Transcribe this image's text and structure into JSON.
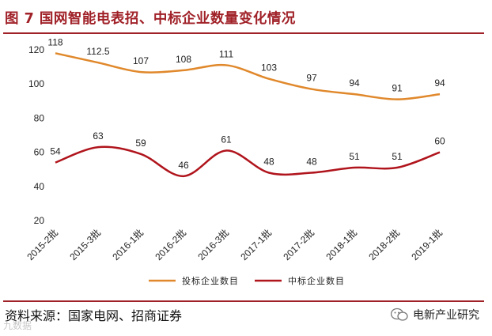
{
  "header": {
    "title": "图 7  国网智能电表招、中标企业数量变化情况"
  },
  "footer": {
    "source": "资料来源：国家电网、招商证券",
    "watermark": "九数据",
    "brand": "电新产业研究"
  },
  "colors": {
    "accent": "#a02128",
    "series_bid": "#e0882b",
    "series_win": "#b0141c"
  },
  "chart_data": {
    "type": "line",
    "categories": [
      "2015-2批",
      "2015-3批",
      "2016-1批",
      "2016-2批",
      "2016-3批",
      "2017-1批",
      "2017-2批",
      "2018-1批",
      "2018-2批",
      "2019-1批"
    ],
    "series": [
      {
        "name": "投标企业数目",
        "values": [
          118,
          112.5,
          107,
          108,
          111,
          103,
          97,
          94,
          91,
          94
        ],
        "labels": [
          "118",
          "112.5",
          "107",
          "108",
          "111",
          "103",
          "97",
          "94",
          "91",
          "94"
        ]
      },
      {
        "name": "中标企业数目",
        "values": [
          54,
          63,
          59,
          46,
          61,
          48,
          48,
          51,
          51,
          60
        ],
        "labels": [
          "54",
          "63",
          "59",
          "46",
          "61",
          "48",
          "48",
          "51",
          "51",
          "60"
        ]
      }
    ],
    "ylim": [
      20,
      120
    ],
    "yticks": [
      "20",
      "40",
      "60",
      "80",
      "100",
      "120"
    ],
    "legend_position": "bottom"
  }
}
